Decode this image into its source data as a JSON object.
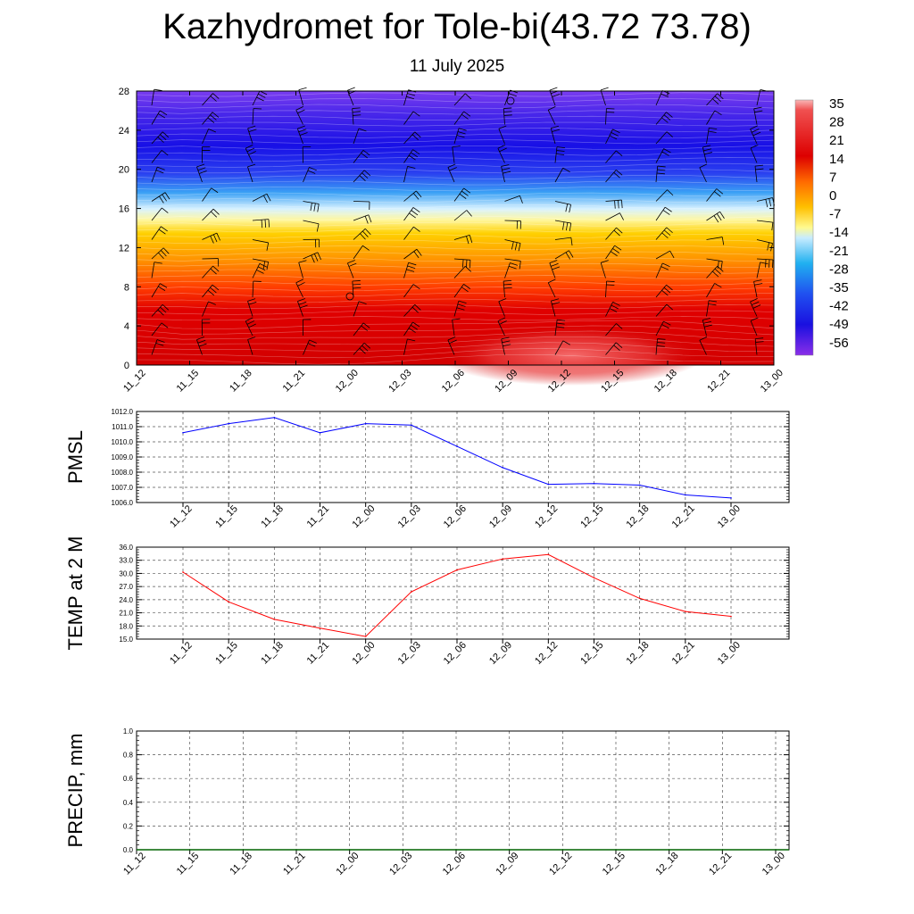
{
  "title": "Kazhydromet for Tole-bi(43.72 73.78)",
  "subtitle": "11 July 2025",
  "time_labels": [
    "11_12",
    "11_15",
    "11_18",
    "11_21",
    "12_00",
    "12_03",
    "12_06",
    "12_09",
    "12_12",
    "12_15",
    "12_18",
    "12_21",
    "13_00"
  ],
  "colorbar_labels": [
    "35",
    "28",
    "21",
    "14",
    "7",
    "0",
    "-7",
    "-14",
    "-21",
    "-28",
    "-35",
    "-42",
    "-49",
    "-56"
  ],
  "chart_data": [
    {
      "type": "heatmap",
      "name": "vertical-section",
      "yticks": [
        "0",
        "4",
        "8",
        "12",
        "16",
        "20",
        "24",
        "28"
      ],
      "ylim": [
        0,
        28
      ],
      "x": [
        "11_12",
        "11_15",
        "11_18",
        "11_21",
        "12_00",
        "12_03",
        "12_06",
        "12_09",
        "12_12",
        "12_15",
        "12_18",
        "12_21",
        "13_00"
      ],
      "colorbar_range": [
        -56,
        35
      ],
      "overlay": "wind barbs"
    },
    {
      "type": "line",
      "name": "pmsl",
      "ylabel": "PMSL",
      "yticks": [
        "1006.0",
        "1007.0",
        "1008.0",
        "1009.0",
        "1010.0",
        "1011.0",
        "1012.0"
      ],
      "ylim": [
        1006.0,
        1012.0
      ],
      "x": [
        "11_12",
        "11_15",
        "11_18",
        "11_21",
        "12_00",
        "12_03",
        "12_06",
        "12_09",
        "12_12",
        "12_15",
        "12_18",
        "12_21",
        "13_00"
      ],
      "values": [
        1010.6,
        1011.2,
        1011.6,
        1010.6,
        1011.2,
        1011.1,
        1009.7,
        1008.3,
        1007.2,
        1007.25,
        1007.15,
        1006.5,
        1006.3
      ],
      "color": "#0000ff"
    },
    {
      "type": "line",
      "name": "temp",
      "ylabel": "TEMP at 2 M",
      "yticks": [
        "15.0",
        "18.0",
        "21.0",
        "24.0",
        "27.0",
        "30.0",
        "33.0",
        "36.0"
      ],
      "ylim": [
        15.0,
        36.0
      ],
      "x": [
        "11_12",
        "11_15",
        "11_18",
        "11_21",
        "12_00",
        "12_03",
        "12_06",
        "12_09",
        "12_12",
        "12_15",
        "12_18",
        "12_21",
        "13_00"
      ],
      "values": [
        30.3,
        23.5,
        19.5,
        17.5,
        15.6,
        25.8,
        30.8,
        33.3,
        34.3,
        29.0,
        24.3,
        21.3,
        20.2
      ],
      "color": "#ff0000"
    },
    {
      "type": "bar",
      "name": "precip",
      "ylabel": "PRECIP, mm",
      "yticks": [
        "0.0",
        "0.2",
        "0.4",
        "0.6",
        "0.8",
        "1.0"
      ],
      "ylim": [
        0.0,
        1.0
      ],
      "x": [
        "11_12",
        "11_15",
        "11_18",
        "11_21",
        "12_00",
        "12_03",
        "12_06",
        "12_09",
        "12_12",
        "12_15",
        "12_18",
        "12_21",
        "13_00"
      ],
      "values": [
        0,
        0,
        0,
        0,
        0,
        0,
        0,
        0,
        0,
        0,
        0,
        0,
        0
      ],
      "color": "#006400"
    }
  ]
}
